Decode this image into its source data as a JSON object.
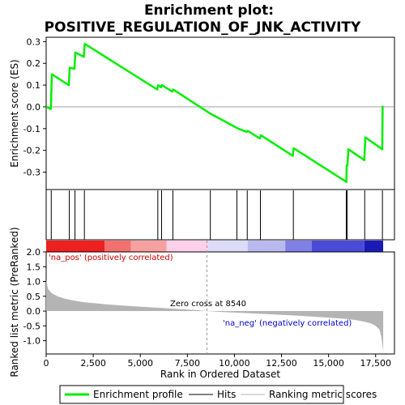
{
  "chart_data": {
    "type": "line",
    "title_line1": "Enrichment plot:",
    "title_line2": "POSITIVE_REGULATION_OF_JNK_ACTIVITY",
    "top_panel": {
      "ylabel": "Enrichment score (ES)",
      "ylim": [
        -0.38,
        0.32
      ],
      "yticks": [
        -0.3,
        -0.2,
        -0.1,
        0.0,
        0.1,
        0.2,
        0.3
      ],
      "ytick_labels": [
        "-0.3",
        "-0.2",
        "-0.1",
        "0.0",
        "0.1",
        "0.2",
        "0.3"
      ],
      "series": [
        {
          "name": "Enrichment profile",
          "color": "#00ee00",
          "x": [
            0,
            250,
            300,
            1200,
            1250,
            1500,
            1550,
            2000,
            2050,
            5900,
            5950,
            6100,
            6150,
            6700,
            6750,
            8700,
            10100,
            10200,
            10650,
            10700,
            11350,
            11400,
            13100,
            13150,
            15950,
            15960,
            16000,
            16050,
            16900,
            16950,
            17850,
            17870
          ],
          "y": [
            0.0,
            -0.01,
            0.15,
            0.1,
            0.18,
            0.175,
            0.25,
            0.23,
            0.29,
            0.08,
            0.1,
            0.09,
            0.1,
            0.07,
            0.08,
            -0.03,
            -0.095,
            -0.1,
            -0.115,
            -0.11,
            -0.145,
            -0.13,
            -0.225,
            -0.19,
            -0.345,
            -0.27,
            -0.27,
            -0.195,
            -0.245,
            -0.14,
            -0.195,
            0.005
          ]
        }
      ]
    },
    "hits": {
      "name": "Hits",
      "x": [
        270,
        1230,
        1530,
        2030,
        5930,
        6130,
        6730,
        8720,
        10130,
        10680,
        11380,
        13130,
        15940,
        15990,
        16920,
        17860
      ]
    },
    "color_bar": {
      "segments": [
        {
          "from": 0,
          "to": 3100,
          "color": "#ee2020"
        },
        {
          "from": 3100,
          "to": 4500,
          "color": "#f37070"
        },
        {
          "from": 4500,
          "to": 6400,
          "color": "#f7a0a0"
        },
        {
          "from": 6400,
          "to": 8600,
          "color": "#fbd0e8"
        },
        {
          "from": 8600,
          "to": 10700,
          "color": "#dcdcf8"
        },
        {
          "from": 10700,
          "to": 12700,
          "color": "#b9b9f0"
        },
        {
          "from": 12700,
          "to": 14100,
          "color": "#7f7fe6"
        },
        {
          "from": 14100,
          "to": 16900,
          "color": "#4a4ad8"
        },
        {
          "from": 16900,
          "to": 17900,
          "color": "#1a1ab8"
        }
      ]
    },
    "bottom_panel": {
      "ylabel": "Ranked list metric (PreRanked)",
      "xlabel": "Rank in Ordered Dataset",
      "ylim": [
        -1.45,
        2.0
      ],
      "yticks": [
        -1.0,
        -0.5,
        0.0,
        0.5,
        1.0,
        1.5,
        2.0
      ],
      "ytick_labels": [
        "-1.0",
        "-0.5",
        "0.0",
        "0.5",
        "1.0",
        "1.5",
        "2.0"
      ],
      "xlim": [
        0,
        18500
      ],
      "xticks": [
        0,
        2500,
        5000,
        7500,
        10000,
        12500,
        15000,
        17500
      ],
      "xtick_labels": [
        "0",
        "2,500",
        "5,000",
        "7,500",
        "10,000",
        "12,500",
        "15,000",
        "17,500"
      ],
      "metric_x": [
        0,
        100,
        300,
        600,
        1000,
        1500,
        2000,
        3000,
        4000,
        5000,
        6000,
        7000,
        8000,
        8540,
        9000,
        10000,
        11000,
        12000,
        13000,
        14000,
        15000,
        16000,
        16500,
        17000,
        17300,
        17500,
        17700,
        17800,
        17900
      ],
      "metric_y": [
        1.05,
        0.75,
        0.6,
        0.5,
        0.42,
        0.35,
        0.3,
        0.24,
        0.19,
        0.15,
        0.11,
        0.07,
        0.03,
        0.0,
        -0.02,
        -0.05,
        -0.08,
        -0.11,
        -0.14,
        -0.18,
        -0.22,
        -0.27,
        -0.31,
        -0.37,
        -0.43,
        -0.5,
        -0.62,
        -0.85,
        -1.35
      ],
      "metric_color": "#b4b4b4",
      "zero_cross_label": "Zero cross at 8540",
      "zero_cross_x": 8540,
      "pos_label": "'na_pos' (positively correlated)",
      "pos_color": "#cc0000",
      "neg_label": "'na_neg' (negatively correlated)",
      "neg_color": "#0000cc"
    },
    "legend": [
      {
        "label": "Enrichment profile",
        "color": "#00ee00",
        "style": "thick-line"
      },
      {
        "label": "Hits",
        "color": "#000000",
        "style": "thin-line"
      },
      {
        "label": "Ranking metric scores",
        "color": "#b4b4b4",
        "style": "thin-line"
      }
    ],
    "grid": false,
    "legend_placement": "bottom"
  }
}
